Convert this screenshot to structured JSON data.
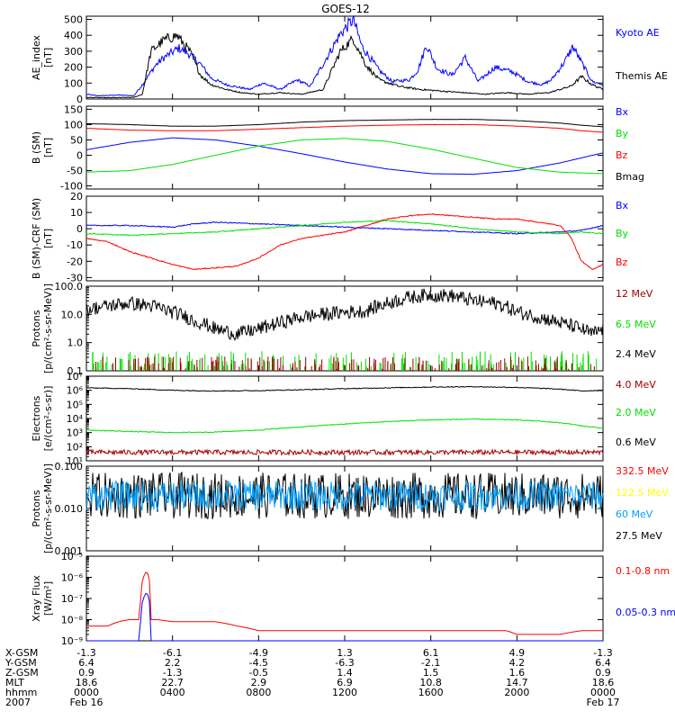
{
  "title": "GOES-12",
  "colors": {
    "black": "#000000",
    "blue": "#0000ff",
    "red": "#ff0000",
    "green": "#00e000",
    "darkred": "#a00000",
    "cyan": "#00a0ff",
    "yellow": "#ffff00"
  },
  "chart_data": [
    {
      "id": "ae",
      "type": "line",
      "ylabel": "AE_index\n[nT]",
      "scale": "linear",
      "ylim": [
        0,
        520
      ],
      "yticks": [
        0,
        100,
        200,
        300,
        400,
        500
      ],
      "ytick_labels": [
        "0",
        "100",
        "200",
        "300",
        "400",
        "500"
      ],
      "series": [
        {
          "name": "Kyoto AE",
          "color": "blue",
          "x": [
            0,
            0.5,
            1.5,
            2.2,
            2.6,
            3.2,
            3.6,
            4.3,
            4.8,
            5.3,
            5.8,
            6.5,
            7.2,
            7.6,
            8.2,
            9.0,
            9.8,
            10.4,
            11.0,
            11.8,
            12.4,
            12.8,
            13.6,
            14.2,
            15.0,
            15.4,
            15.8,
            16.3,
            17.0,
            17.6,
            18.2,
            19.0,
            19.8,
            20.5,
            21.2,
            21.6,
            22.2,
            22.6,
            23.0,
            23.5,
            24
          ],
          "y": [
            30,
            20,
            25,
            20,
            90,
            210,
            260,
            320,
            280,
            220,
            130,
            90,
            70,
            60,
            100,
            60,
            120,
            80,
            220,
            410,
            500,
            330,
            180,
            110,
            120,
            180,
            340,
            190,
            150,
            260,
            110,
            200,
            170,
            110,
            90,
            120,
            230,
            330,
            230,
            110,
            90
          ]
        },
        {
          "name": "Themis AE",
          "color": "black",
          "x": [
            0,
            1.0,
            2.2,
            2.6,
            3.0,
            3.6,
            4.2,
            4.8,
            5.3,
            5.8,
            6.5,
            7.2,
            8.0,
            9.0,
            10.0,
            11.0,
            11.8,
            12.4,
            13.0,
            13.6,
            14.5,
            15.5,
            16.5,
            17.5,
            18.5,
            19.5,
            20.5,
            21.5,
            22.5,
            23.0,
            23.5,
            24
          ],
          "y": [
            10,
            8,
            10,
            30,
            300,
            370,
            400,
            300,
            150,
            90,
            60,
            40,
            30,
            40,
            30,
            60,
            300,
            380,
            210,
            120,
            80,
            60,
            50,
            40,
            30,
            40,
            30,
            40,
            80,
            140,
            90,
            60
          ]
        }
      ],
      "legend": [
        "Kyoto AE",
        "Themis AE"
      ]
    },
    {
      "id": "bsm",
      "type": "line",
      "ylabel": "B (SM)\n[nT]",
      "scale": "linear",
      "ylim": [
        -110,
        160
      ],
      "yticks": [
        -100,
        -50,
        0,
        50,
        100,
        150
      ],
      "ytick_labels": [
        "-100",
        "-50",
        "0",
        "50",
        "100",
        "150"
      ],
      "series": [
        {
          "name": "Bx",
          "color": "blue",
          "x": [
            0,
            2,
            4,
            6,
            8,
            10,
            12,
            14,
            16,
            18,
            20,
            22,
            24
          ],
          "y": [
            18,
            42,
            57,
            50,
            30,
            5,
            -22,
            -45,
            -60,
            -62,
            -50,
            -25,
            8
          ]
        },
        {
          "name": "By",
          "color": "green",
          "x": [
            0,
            2,
            4,
            6,
            8,
            10,
            12,
            14,
            16,
            18,
            20,
            22,
            24
          ],
          "y": [
            -55,
            -50,
            -30,
            0,
            30,
            50,
            55,
            45,
            20,
            -10,
            -40,
            -55,
            -60
          ]
        },
        {
          "name": "Bz",
          "color": "red",
          "x": [
            0,
            2,
            4,
            6,
            8,
            10,
            12,
            14,
            16,
            18,
            20,
            22,
            23,
            24
          ],
          "y": [
            88,
            82,
            80,
            80,
            85,
            90,
            95,
            98,
            100,
            100,
            95,
            88,
            80,
            75
          ]
        },
        {
          "name": "Bmag",
          "color": "black",
          "x": [
            0,
            2,
            4,
            6,
            8,
            10,
            12,
            14,
            16,
            18,
            20,
            22,
            23,
            24
          ],
          "y": [
            103,
            100,
            95,
            95,
            100,
            108,
            113,
            115,
            117,
            117,
            113,
            105,
            98,
            93
          ]
        }
      ],
      "legend": [
        "Bx",
        "By",
        "Bz",
        "Bmag"
      ]
    },
    {
      "id": "bdiff",
      "type": "line",
      "ylabel": "B (SM)-CRF (SM)\n[nT]",
      "scale": "linear",
      "ylim": [
        -32,
        20
      ],
      "yticks": [
        -30,
        -20,
        -10,
        0,
        10,
        20
      ],
      "ytick_labels": [
        "-30",
        "-20",
        "-10",
        "0",
        "10",
        "20"
      ],
      "series": [
        {
          "name": "Bx",
          "color": "blue",
          "x": [
            0,
            2,
            4,
            5,
            6,
            8,
            10,
            12,
            14,
            16,
            18,
            20,
            22,
            23,
            24
          ],
          "y": [
            2,
            2,
            1,
            3,
            4,
            3,
            2,
            1,
            0,
            -1,
            -2,
            -3,
            -2,
            -1,
            2
          ]
        },
        {
          "name": "By",
          "color": "green",
          "x": [
            0,
            2,
            4,
            6,
            8,
            10,
            12,
            14,
            16,
            18,
            20,
            22,
            23,
            24
          ],
          "y": [
            -3,
            -4,
            -3,
            -2,
            0,
            2,
            4,
            5,
            3,
            0,
            -2,
            -3,
            -2,
            -3
          ]
        },
        {
          "name": "Bz",
          "color": "red",
          "x": [
            0,
            1,
            2,
            3,
            4,
            5,
            6,
            7,
            8,
            9,
            10,
            12,
            13,
            14,
            15,
            16,
            17,
            18,
            19,
            20,
            21,
            22,
            22.5,
            23,
            23.5,
            24
          ],
          "y": [
            -6,
            -8,
            -14,
            -18,
            -22,
            -25,
            -24,
            -23,
            -18,
            -10,
            -6,
            -2,
            2,
            6,
            8,
            9,
            8,
            7,
            6,
            6,
            4,
            2,
            -5,
            -20,
            -25,
            -22
          ]
        }
      ],
      "legend": [
        "Bx",
        "By",
        "Bz"
      ]
    },
    {
      "id": "protons1",
      "type": "line",
      "ylabel": "Protons\n[p/(cm²-s-sr-MeV)]",
      "scale": "log",
      "ylim": [
        0.1,
        100
      ],
      "yticks": [
        0.1,
        1,
        10,
        100
      ],
      "ytick_labels": [
        "0.1",
        "1.0",
        "10.0",
        "100.0"
      ],
      "series": [
        {
          "name": "2.4 MeV",
          "color": "black",
          "x": [
            0,
            1,
            2,
            3,
            4,
            5,
            6,
            7,
            8,
            9,
            10,
            11,
            12,
            13,
            14,
            15,
            16,
            17,
            18,
            19,
            20,
            21,
            22,
            23,
            23.5,
            24
          ],
          "y": [
            15,
            20,
            25,
            20,
            12,
            6,
            3,
            2,
            3,
            5,
            8,
            10,
            12,
            13,
            25,
            40,
            50,
            45,
            30,
            25,
            12,
            8,
            5,
            3,
            2,
            3
          ]
        },
        {
          "name": "6.5 MeV",
          "color": "green",
          "x": [
            0,
            24
          ],
          "y": [
            0.1,
            0.1
          ]
        },
        {
          "name": "12 MeV",
          "color": "darkred",
          "x": [
            0,
            24
          ],
          "y": [
            0.1,
            0.1
          ]
        }
      ],
      "legend": [
        "12 MeV",
        "6.5 MeV",
        "2.4 MeV"
      ]
    },
    {
      "id": "electrons",
      "type": "line",
      "ylabel": "Electrons\n[e/(cm²-s-sr)]",
      "scale": "log",
      "ylim": [
        10,
        10000000
      ],
      "yticks": [
        10,
        100,
        1000,
        10000,
        100000,
        1000000,
        10000000
      ],
      "ytick_labels": [
        "10¹",
        "10²",
        "10³",
        "10⁴",
        "10⁵",
        "10⁶",
        "10⁷"
      ],
      "series": [
        {
          "name": "0.6 MeV",
          "color": "black",
          "x": [
            0,
            2,
            4,
            6,
            8,
            10,
            12,
            14,
            16,
            18,
            20,
            22,
            23,
            24
          ],
          "y": [
            1500000,
            1300000,
            1000000,
            900000,
            950000,
            1100000,
            1300000,
            1500000,
            1700000,
            1800000,
            1600000,
            1200000,
            900000,
            1000000
          ]
        },
        {
          "name": "2.0 MeV",
          "color": "green",
          "x": [
            0,
            2,
            4,
            6,
            8,
            10,
            12,
            14,
            16,
            18,
            20,
            22,
            23,
            24
          ],
          "y": [
            1500,
            1200,
            1000,
            1100,
            1500,
            2500,
            4000,
            6000,
            8000,
            9000,
            8000,
            5000,
            3000,
            2000
          ]
        },
        {
          "name": "4.0 MeV",
          "color": "darkred",
          "x": [
            0,
            24
          ],
          "y": [
            40,
            40
          ]
        }
      ],
      "legend": [
        "4.0 MeV",
        "2.0 MeV",
        "0.6 MeV"
      ]
    },
    {
      "id": "protons2",
      "type": "line",
      "ylabel": "Protons\n[p/(cm²-s-sr-MeV)]",
      "scale": "log",
      "ylim": [
        0.001,
        0.1
      ],
      "yticks": [
        0.001,
        0.01,
        0.1
      ],
      "ytick_labels": [
        "0.001",
        "0.010",
        "0.100"
      ],
      "series": [
        {
          "name": "27.5 MeV",
          "color": "black",
          "x": [
            0,
            24
          ],
          "y": [
            0.02,
            0.02
          ]
        },
        {
          "name": "60 MeV",
          "color": "cyan",
          "x": [
            0,
            24
          ],
          "y": [
            0.02,
            0.02
          ]
        },
        {
          "name": "122.5 MeV",
          "color": "yellow",
          "x": [
            0,
            24
          ],
          "y": [
            0.02,
            0.02
          ]
        },
        {
          "name": "332.5 MeV",
          "color": "red",
          "x": [
            0,
            24
          ],
          "y": [
            0.02,
            0.02
          ]
        }
      ],
      "legend": [
        "332.5 MeV",
        "122.5 MeV",
        "60 MeV",
        "27.5 MeV"
      ]
    },
    {
      "id": "xray",
      "type": "line",
      "ylabel": "Xray Flux\n[W/m²]",
      "scale": "log",
      "ylim": [
        1e-09,
        1e-05
      ],
      "yticks": [
        1e-09,
        1e-08,
        1e-07,
        1e-06,
        1e-05
      ],
      "ytick_labels": [
        "10⁻⁹",
        "10⁻⁸",
        "10⁻⁷",
        "10⁻⁶",
        "10⁻⁵"
      ],
      "series": [
        {
          "name": "0.1-0.8 nm",
          "color": "red",
          "x": [
            0,
            1.0,
            1.5,
            2.0,
            2.5,
            2.8,
            3.0,
            3.3,
            4.0,
            6.0,
            7.0,
            8.0,
            10.0,
            12.0,
            14.0,
            16.0,
            18.0,
            19.5,
            20.0,
            22.0,
            23.0,
            24
          ],
          "y": [
            5e-09,
            5e-09,
            8e-09,
            1e-08,
            1e-08,
            2e-06,
            1e-08,
            1e-08,
            8e-09,
            8e-09,
            5e-09,
            3e-09,
            3e-09,
            3e-09,
            3e-09,
            3e-09,
            3e-09,
            3e-09,
            2e-09,
            2e-09,
            3e-09,
            3e-09
          ]
        },
        {
          "name": "0.05-0.3 nm",
          "color": "blue",
          "x": [
            0,
            2.5,
            2.8,
            3.0,
            3.3,
            4.0,
            8.0,
            12.0,
            16.0,
            20.0,
            22.0,
            24
          ],
          "y": [
            1e-09,
            1e-09,
            2e-07,
            1e-09,
            1e-09,
            1e-09,
            1e-09,
            1e-09,
            1e-09,
            1e-09,
            1e-09,
            1e-09
          ]
        }
      ],
      "legend": [
        "0.1-0.8 nm",
        "0.05-0.3 nm"
      ]
    }
  ],
  "xaxis": {
    "range": [
      0,
      24
    ],
    "rows": [
      {
        "label": "X-GSM",
        "values": [
          "-1.3",
          "-6.1",
          "-4.9",
          "1.3",
          "6.1",
          "4.9",
          "-1.3"
        ]
      },
      {
        "label": "Y-GSM",
        "values": [
          "6.4",
          "2.2",
          "-4.5",
          "-6.3",
          "-2.1",
          "4.2",
          "6.4"
        ]
      },
      {
        "label": "Z-GSM",
        "values": [
          "0.9",
          "-1.3",
          "-0.5",
          "1.4",
          "1.5",
          "1.6",
          "0.9"
        ]
      },
      {
        "label": "MLT",
        "values": [
          "18.6",
          "22.7",
          "2.9",
          "6.9",
          "10.8",
          "14.7",
          "18.6"
        ]
      },
      {
        "label": "hhmm",
        "values": [
          "0000",
          "0400",
          "0800",
          "1200",
          "1600",
          "2000",
          "0000"
        ]
      },
      {
        "label": "2007",
        "values": [
          "Feb 16",
          "",
          "",
          "",
          "",
          "",
          "Feb 17"
        ]
      }
    ],
    "tick_hours": [
      0,
      4,
      8,
      12,
      16,
      20,
      24
    ]
  }
}
